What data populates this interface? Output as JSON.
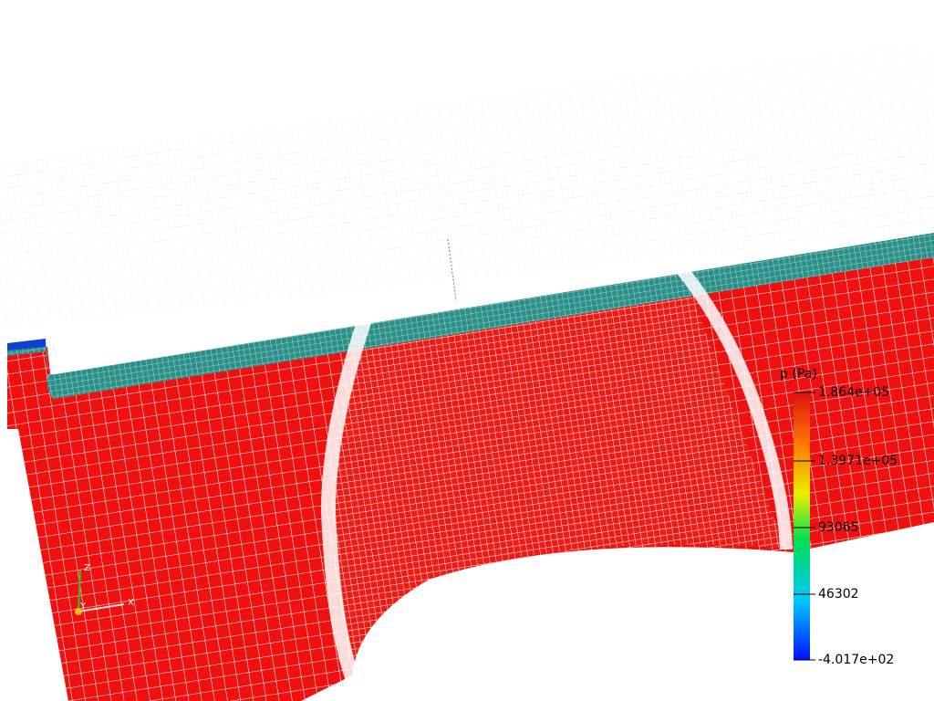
{
  "colorbar": {
    "title": "p (Pa)",
    "labels": [
      "1.864e+05",
      "1.3971e+05",
      "93065",
      "46302",
      "-4.017e+02"
    ]
  },
  "axes": {
    "labels": [
      "Z",
      "Y",
      "X"
    ]
  }
}
